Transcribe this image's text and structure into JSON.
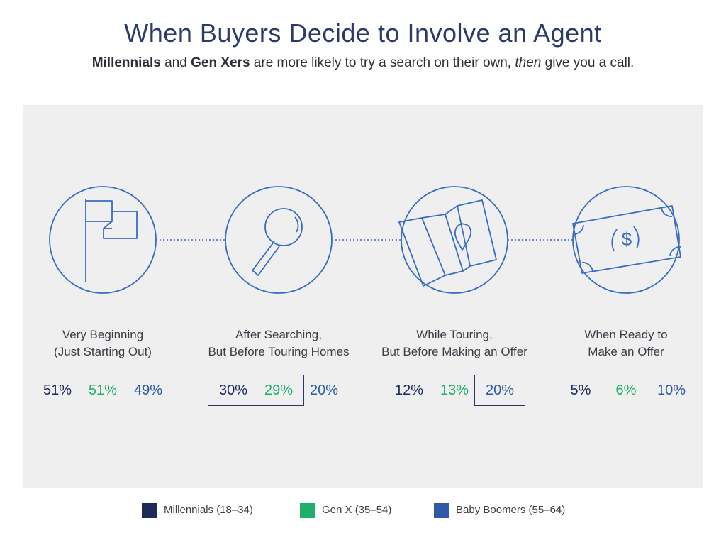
{
  "header": {
    "title": "When Buyers Decide to Involve an Agent",
    "subtitle_parts": {
      "bold1": "Millennials",
      "text1": " and ",
      "bold2": "Gen Xers",
      "text2": " are more likely to try a search on their own, ",
      "italic": "then",
      "text3": " give you a call."
    }
  },
  "colors": {
    "millennials": "#1f2a5a",
    "genx": "#1fae6c",
    "boomers": "#2f5aa8",
    "icon_stroke": "#3a6cc0",
    "panel": "#efeff0"
  },
  "chart_data": {
    "type": "table",
    "categories": [
      "Very Beginning (Just Starting Out)",
      "After Searching, But Before Touring Homes",
      "While Touring, But Before Making an Offer",
      "When Ready to Make an Offer"
    ],
    "series": [
      {
        "name": "Millennials (18–34)",
        "values": [
          51,
          30,
          12,
          5
        ]
      },
      {
        "name": "Gen X (35–54)",
        "values": [
          51,
          29,
          13,
          6
        ]
      },
      {
        "name": "Baby Boomers (55–64)",
        "values": [
          49,
          20,
          20,
          10
        ]
      }
    ],
    "unit": "%",
    "legend_position": "bottom"
  },
  "stages": [
    {
      "icon": "flag-icon",
      "line1": "Very Beginning",
      "line2": "(Just Starting Out)",
      "values": [
        "51%",
        "51%",
        "49%"
      ],
      "highlighted": []
    },
    {
      "icon": "magnifier-icon",
      "line1": "After Searching,",
      "line2": "But Before Touring Homes",
      "values": [
        "30%",
        "29%",
        "20%"
      ],
      "highlighted": [
        0,
        1
      ]
    },
    {
      "icon": "map-pin-icon",
      "line1": "While Touring,",
      "line2": "But Before Making an Offer",
      "values": [
        "12%",
        "13%",
        "20%"
      ],
      "highlighted": [
        2
      ]
    },
    {
      "icon": "dollar-bill-icon",
      "line1": "When Ready to",
      "line2": "Make an Offer",
      "values": [
        "5%",
        "6%",
        "10%"
      ],
      "highlighted": []
    }
  ],
  "legend": [
    {
      "label": "Millennials (18–34)",
      "color": "#1f2a5a"
    },
    {
      "label": "Gen X (35–54)",
      "color": "#1fae6c"
    },
    {
      "label": "Baby Boomers (55–64)",
      "color": "#2f5aa8"
    }
  ]
}
